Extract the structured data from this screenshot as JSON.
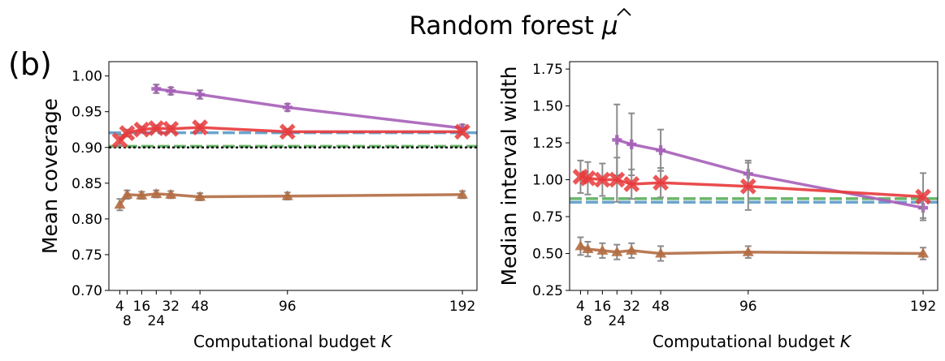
{
  "figure": {
    "title_prefix": "Random forest",
    "title_symbol": "μ",
    "panel_label": "(b)"
  },
  "chart_data": [
    {
      "type": "line",
      "panel": "left",
      "xlabel": "Computational budget",
      "xlabel_var": "K",
      "ylabel": "Mean coverage",
      "ylim": [
        0.7,
        1.02
      ],
      "xlim": [
        -2,
        200
      ],
      "xticks": [
        4,
        8,
        16,
        24,
        32,
        48,
        96,
        192
      ],
      "xtick_labels": [
        "4",
        "8",
        "16",
        "24",
        "32",
        "48",
        "96",
        "192"
      ],
      "yticks": [
        0.7,
        0.75,
        0.8,
        0.85,
        0.9,
        0.95,
        1.0
      ],
      "ytick_labels": [
        "0.70",
        "0.75",
        "0.80",
        "0.85",
        "0.90",
        "0.95",
        "1.00"
      ],
      "grid": false,
      "hlines": [
        {
          "y": 0.9205,
          "color": "#5b9bc9",
          "style": "dashed"
        },
        {
          "y": 0.9015,
          "color": "#5aaf5a",
          "style": "dashed"
        },
        {
          "y": 0.9,
          "color": "#111111",
          "style": "dotted"
        }
      ],
      "series": [
        {
          "color": "#a65fb8",
          "marker": "plus",
          "x": [
            24,
            32,
            48,
            96,
            192
          ],
          "y": [
            0.982,
            0.979,
            0.974,
            0.956,
            0.927
          ],
          "err": [
            0.006,
            0.005,
            0.006,
            0.005,
            0.005
          ]
        },
        {
          "color": "#e8393b",
          "marker": "x",
          "x": [
            4,
            8,
            16,
            24,
            32,
            48,
            96,
            192
          ],
          "y": [
            0.91,
            0.92,
            0.925,
            0.927,
            0.926,
            0.928,
            0.922,
            0.922
          ],
          "err": [
            0.008,
            0.005,
            0.004,
            0.004,
            0.004,
            0.004,
            0.004,
            0.004
          ]
        },
        {
          "color": "#b26d43",
          "marker": "triangle",
          "x": [
            4,
            8,
            16,
            24,
            32,
            48,
            96,
            192
          ],
          "y": [
            0.82,
            0.834,
            0.833,
            0.835,
            0.834,
            0.831,
            0.832,
            0.834
          ],
          "err": [
            0.008,
            0.006,
            0.005,
            0.005,
            0.005,
            0.005,
            0.005,
            0.005
          ]
        }
      ]
    },
    {
      "type": "line",
      "panel": "right",
      "xlabel": "Computational budget",
      "xlabel_var": "K",
      "ylabel": "Median interval width",
      "ylim": [
        0.25,
        1.8
      ],
      "xlim": [
        -2,
        200
      ],
      "xticks": [
        4,
        8,
        16,
        24,
        32,
        48,
        96,
        192
      ],
      "xtick_labels": [
        "4",
        "8",
        "16",
        "24",
        "32",
        "48",
        "96",
        "192"
      ],
      "yticks": [
        0.25,
        0.5,
        0.75,
        1.0,
        1.25,
        1.5,
        1.75
      ],
      "ytick_labels": [
        "0.25",
        "0.50",
        "0.75",
        "1.00",
        "1.25",
        "1.50",
        "1.75"
      ],
      "grid": false,
      "hlines": [
        {
          "y": 0.872,
          "color": "#5aaf5a",
          "style": "dashed"
        },
        {
          "y": 0.848,
          "color": "#5b9bc9",
          "style": "dashed"
        }
      ],
      "series": [
        {
          "color": "#a65fb8",
          "marker": "plus",
          "x": [
            24,
            32,
            48,
            96,
            192
          ],
          "y": [
            1.27,
            1.24,
            1.2,
            1.04,
            0.81
          ],
          "err": [
            0.24,
            0.21,
            0.14,
            0.09,
            0.07
          ]
        },
        {
          "color": "#e8393b",
          "marker": "x",
          "x": [
            4,
            8,
            16,
            24,
            32,
            48,
            96,
            192
          ],
          "y": [
            1.02,
            1.01,
            1.0,
            1.0,
            0.97,
            0.98,
            0.955,
            0.885
          ],
          "err": [
            0.11,
            0.11,
            0.11,
            0.15,
            0.1,
            0.1,
            0.16,
            0.16
          ]
        },
        {
          "color": "#b26d43",
          "marker": "triangle",
          "x": [
            4,
            8,
            16,
            24,
            32,
            48,
            96,
            192
          ],
          "y": [
            0.55,
            0.53,
            0.52,
            0.51,
            0.52,
            0.5,
            0.51,
            0.5
          ],
          "err": [
            0.06,
            0.05,
            0.05,
            0.05,
            0.05,
            0.05,
            0.04,
            0.04
          ]
        }
      ]
    }
  ]
}
